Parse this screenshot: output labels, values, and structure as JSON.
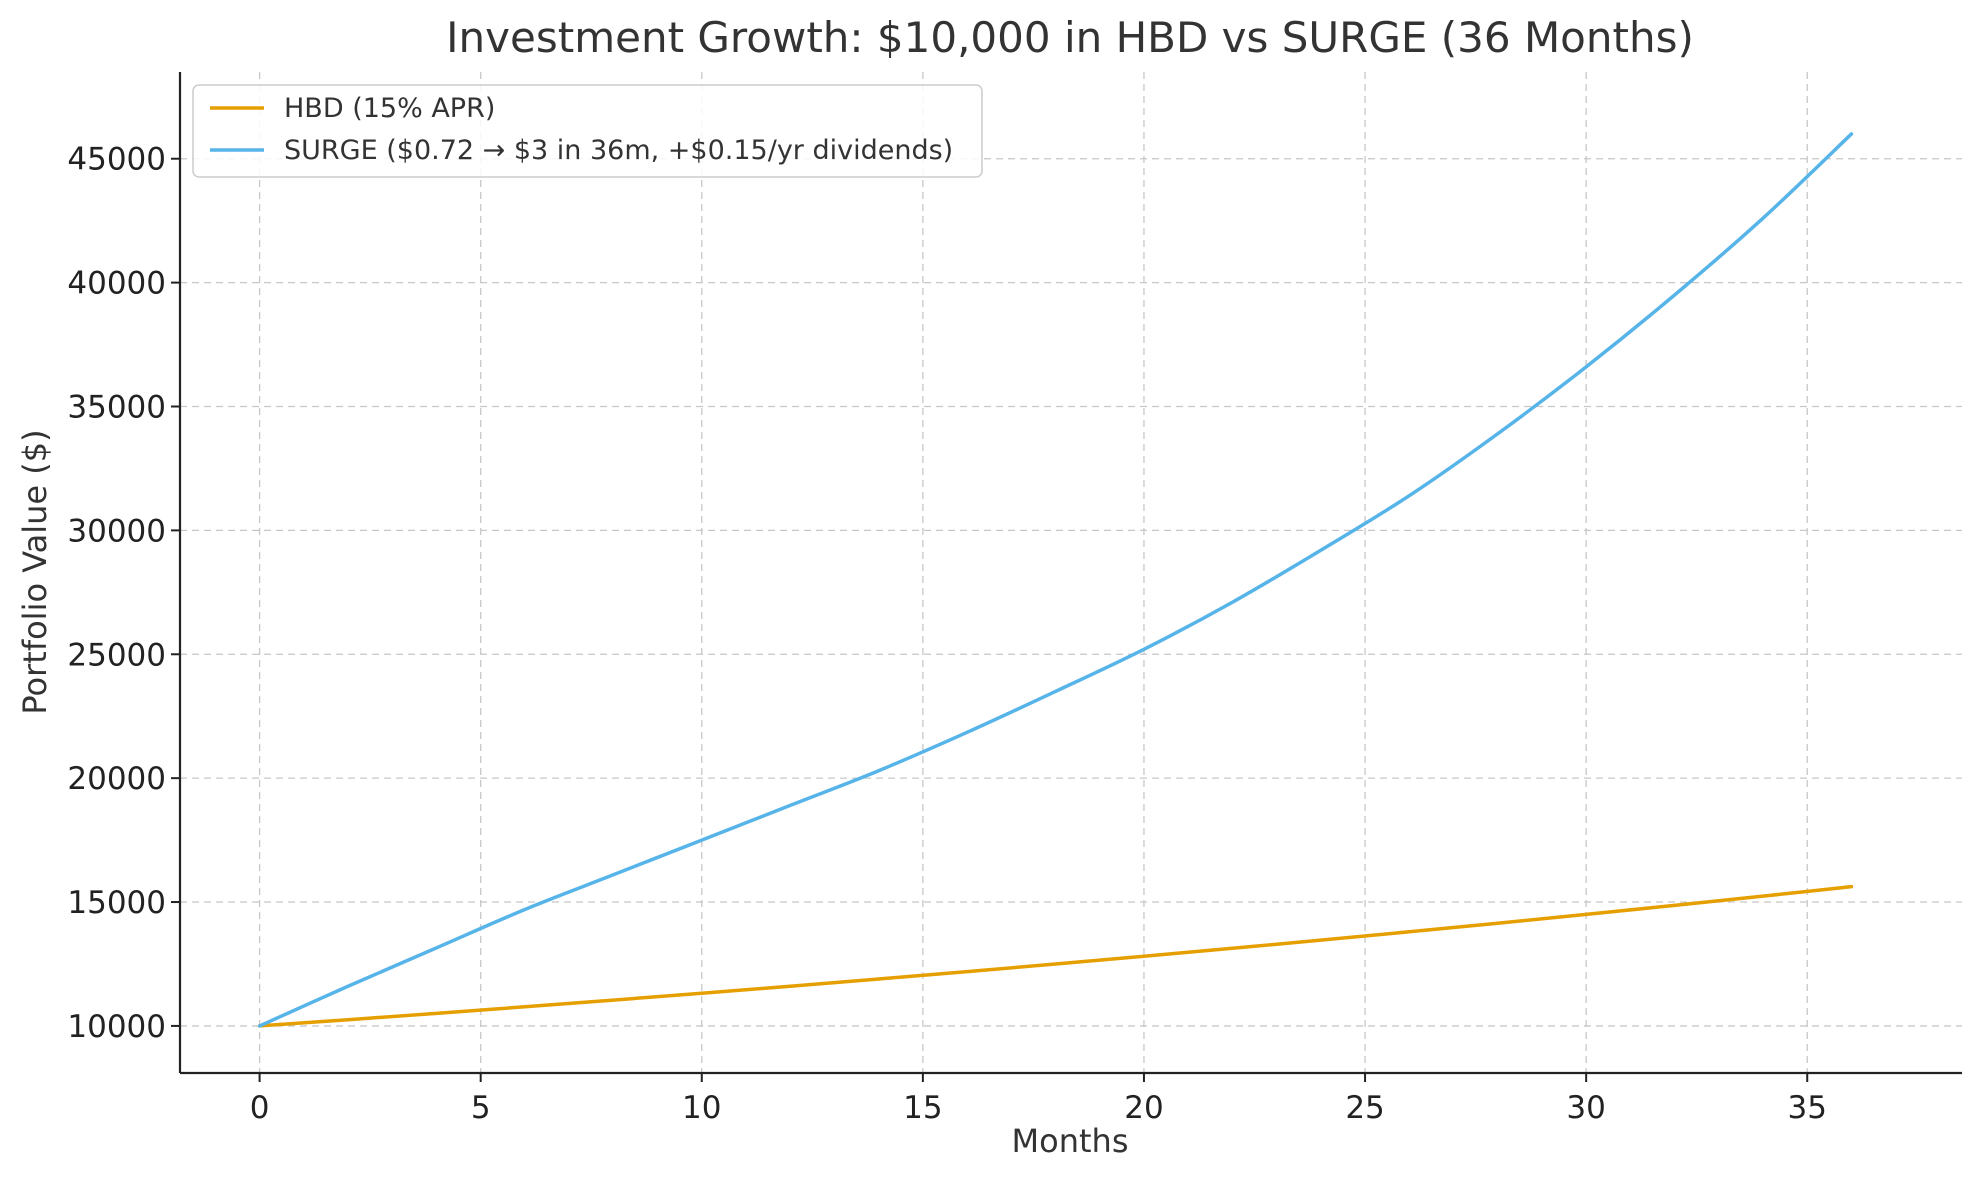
{
  "chart_data": {
    "type": "line",
    "title": "Investment Growth: $10,000 in HBD vs SURGE (36 Months)",
    "xlabel": "Months",
    "ylabel": "Portfolio Value ($)",
    "xlim": [
      -1.8,
      38.5
    ],
    "ylim": [
      8100,
      48500
    ],
    "xticks": [
      "0",
      "5",
      "10",
      "15",
      "20",
      "25",
      "30",
      "35"
    ],
    "yticks": [
      "10000",
      "15000",
      "20000",
      "25000",
      "30000",
      "35000",
      "40000",
      "45000"
    ],
    "grid": true,
    "legend_position": "top-left",
    "x": [
      0,
      2,
      4,
      6,
      8,
      10,
      12,
      14,
      16,
      18,
      20,
      22,
      24,
      26,
      28,
      30,
      32,
      34,
      36
    ],
    "series": [
      {
        "name": "HBD (15% APR)",
        "color": "#E69F00",
        "values": [
          10000,
          10251,
          10508,
          10772,
          11042,
          11319,
          11603,
          11894,
          12192,
          12498,
          12811,
          13133,
          13462,
          13800,
          14146,
          14501,
          14865,
          15238,
          15620
        ]
      },
      {
        "name": "SURGE ($0.72 → $3 in 36m, +$0.15/yr dividends)",
        "color": "#56B4E9",
        "values": [
          10000,
          11600,
          13150,
          14700,
          16100,
          17500,
          18900,
          20300,
          21850,
          23500,
          25200,
          27100,
          29200,
          31400,
          33900,
          36600,
          39500,
          42600,
          46000
        ]
      }
    ]
  }
}
